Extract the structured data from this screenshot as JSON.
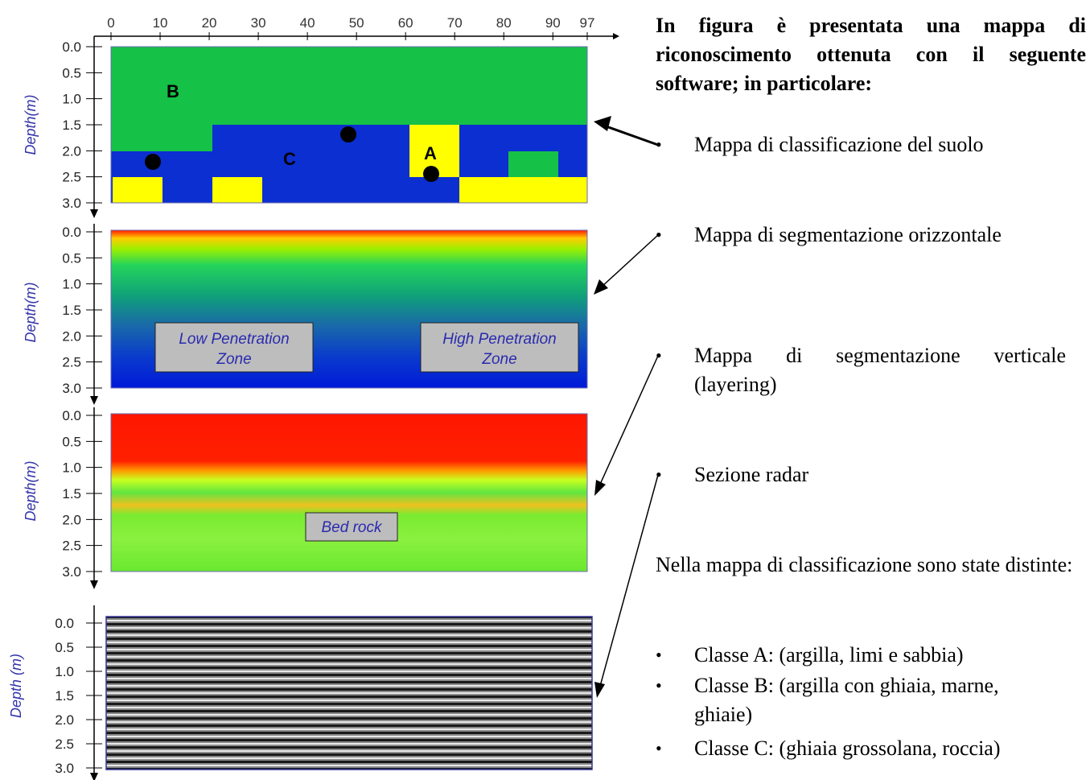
{
  "intro_text": "In figura è presentata una mappa di riconoscimento ottenuta con il seguente software; in particolare:",
  "bullets": [
    "Mappa di classificazione del suolo",
    "Mappa di segmentazione orizzontale",
    "Mappa di segmentazione verticale",
    "(layering)",
    "Sezione radar"
  ],
  "classification_note": "Nella mappa di classificazione sono state distinte:",
  "classes": [
    "Classe A: (argilla, limi e sabbia)",
    "Classe B: (argilla con ghiaia, marne,",
    "ghiaie)",
    "Classe C: (ghiaia grossolana, roccia)"
  ],
  "x_ticks": [
    "0",
    "10",
    "20",
    "30",
    "40",
    "50",
    "60",
    "70",
    "80",
    "90",
    "97"
  ],
  "depth_ticks": [
    "0.0",
    "0.5",
    "1.0",
    "1.5",
    "2.0",
    "2.5",
    "3.0"
  ],
  "depth_axis_label": "Depth(m)",
  "depth_axis_label_radar": "Depth (m)",
  "class_labels": {
    "a": "A",
    "b": "B",
    "c": "C"
  },
  "zone_labels": {
    "low_line1": "Low Penetration",
    "low_line2": "Zone",
    "high_line1": "High Penetration",
    "high_line2": "Zone",
    "bedrock": "Bed rock"
  },
  "colors": {
    "class_b_green": "#16c147",
    "class_c_blue": "#0b2fd0",
    "class_a_yellow": "#ffff00",
    "axis_label_blue": "#3333aa"
  }
}
